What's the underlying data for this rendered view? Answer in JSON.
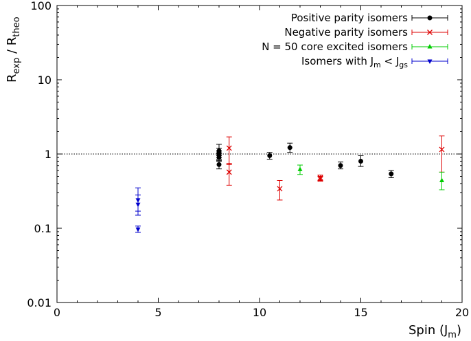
{
  "chart_data": {
    "type": "scatter",
    "xlabel": "Spin (J",
    "xlabel_sub": "m",
    "xlabel_close": ")",
    "ylabel_parts": [
      "R",
      "exp",
      " / R",
      "theo"
    ],
    "xlim": [
      0,
      20
    ],
    "ylim": [
      0.01,
      100
    ],
    "yscale": "log",
    "x_ticks": [
      0,
      5,
      10,
      15,
      20
    ],
    "x_tick_labels": [
      "0",
      "5",
      "10",
      "15",
      "20"
    ],
    "y_ticks": [
      0.01,
      0.1,
      1,
      10,
      100
    ],
    "y_tick_labels": [
      "0.01",
      "0.1",
      "1",
      "10",
      "100"
    ],
    "reference_line": 1,
    "legend_position": "top-right",
    "series": [
      {
        "name": "Positive parity isomers",
        "color": "#000000",
        "marker": "circle",
        "points": [
          {
            "x": 8,
            "y": 1.05,
            "ylo": 0.9,
            "yhi": 1.2
          },
          {
            "x": 8,
            "y": 0.98,
            "ylo": 0.85,
            "yhi": 1.1
          },
          {
            "x": 8,
            "y": 0.9,
            "ylo": 0.8,
            "yhi": 1.02
          },
          {
            "x": 8,
            "y": 0.72,
            "ylo": 0.63,
            "yhi": 0.82
          },
          {
            "x": 8,
            "y": 1.1,
            "ylo": 0.95,
            "yhi": 1.35
          },
          {
            "x": 10.5,
            "y": 0.95,
            "ylo": 0.85,
            "yhi": 1.05
          },
          {
            "x": 11.5,
            "y": 1.22,
            "ylo": 1.05,
            "yhi": 1.4
          },
          {
            "x": 14,
            "y": 0.7,
            "ylo": 0.63,
            "yhi": 0.78
          },
          {
            "x": 15,
            "y": 0.8,
            "ylo": 0.68,
            "yhi": 0.95
          },
          {
            "x": 16.5,
            "y": 0.54,
            "ylo": 0.48,
            "yhi": 0.6
          }
        ]
      },
      {
        "name": "Negative parity isomers",
        "color": "#dd0000",
        "marker": "x",
        "points": [
          {
            "x": 8.5,
            "y": 1.2,
            "ylo": 0.72,
            "yhi": 1.7
          },
          {
            "x": 8.5,
            "y": 0.57,
            "ylo": 0.38,
            "yhi": 0.75
          },
          {
            "x": 11,
            "y": 0.34,
            "ylo": 0.24,
            "yhi": 0.44
          },
          {
            "x": 13,
            "y": 0.48,
            "ylo": 0.44,
            "yhi": 0.52
          },
          {
            "x": 13,
            "y": 0.46,
            "ylo": 0.43,
            "yhi": 0.5
          },
          {
            "x": 19,
            "y": 1.15,
            "ylo": 0.57,
            "yhi": 1.75
          }
        ]
      },
      {
        "name": "N = 50 core excited isomers",
        "color": "#00cc00",
        "marker": "triangle-up",
        "points": [
          {
            "x": 12,
            "y": 0.62,
            "ylo": 0.53,
            "yhi": 0.71
          },
          {
            "x": 19,
            "y": 0.44,
            "ylo": 0.33,
            "yhi": 0.57
          }
        ]
      },
      {
        "name": "Isomers with J",
        "name_parts": [
          "Isomers with J",
          "m",
          " < J",
          "gs"
        ],
        "color": "#0000cc",
        "marker": "triangle-down",
        "points": [
          {
            "x": 4,
            "y": 0.24,
            "ylo": 0.17,
            "yhi": 0.35
          },
          {
            "x": 4,
            "y": 0.21,
            "ylo": 0.15,
            "yhi": 0.28
          },
          {
            "x": 4,
            "y": 0.097,
            "ylo": 0.088,
            "yhi": 0.107
          }
        ]
      }
    ]
  }
}
